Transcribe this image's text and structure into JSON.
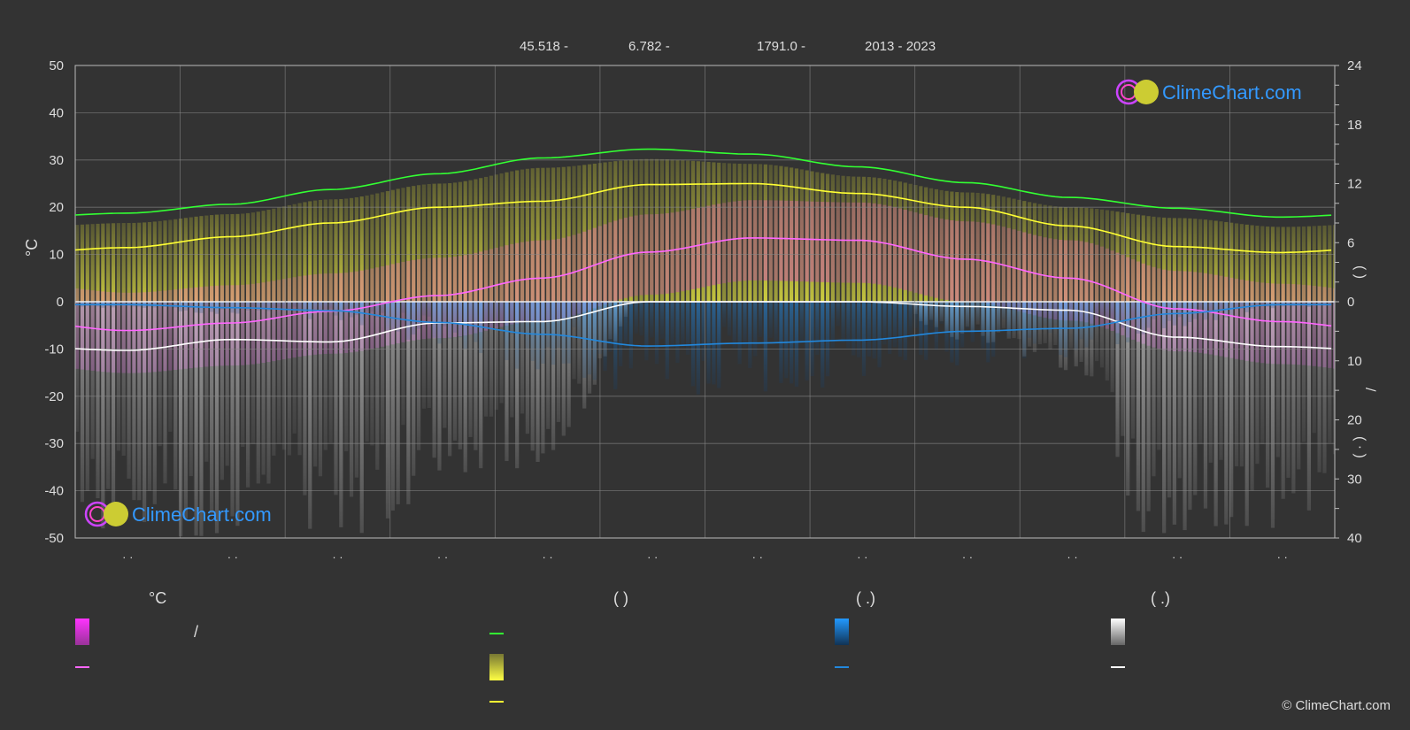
{
  "header": {
    "lat": "45.518 -",
    "lon": "6.782 -",
    "elev": "1791.0 -",
    "years": "2013 - 2023"
  },
  "axes": {
    "left_unit": "°C",
    "right_top_paren": "(          )",
    "right_slash": "/",
    "right_bottom_paren": "( ·  )",
    "month_labels": [
      "· ·",
      "· ·",
      "· ·",
      "· ·",
      "· ·",
      "· ·",
      "· ·",
      "· ·",
      "· ·",
      "· ·",
      "· ·",
      "· ·"
    ]
  },
  "legend": {
    "col1_head": "°C",
    "col1_item1": "/",
    "col2_head": "(          )",
    "col3_head": "(   .)",
    "col4_head": "(   .)"
  },
  "logo": {
    "text": "ClimeChart.com"
  },
  "copyright": "© ClimeChart.com",
  "colors": {
    "background": "#333333",
    "daylight": "#33ff33",
    "sunshine": "#ffff33",
    "temp_mean": "#ff66ff",
    "precip": "#2288dd",
    "snow": "#ffffff",
    "logo_blue": "#3399ff"
  },
  "chart_data": {
    "type": "line",
    "x": [
      15,
      45,
      74,
      105,
      135,
      166,
      196,
      227,
      258,
      288,
      319,
      349
    ],
    "left_axis": {
      "label": "°C",
      "ylim": [
        -50,
        50
      ],
      "ticks": [
        50,
        40,
        30,
        20,
        10,
        0,
        -10,
        -20,
        -30,
        -40,
        -50
      ]
    },
    "right_axis_top": {
      "ylim": [
        0,
        24
      ],
      "ticks": [
        24,
        18,
        12,
        6,
        0
      ]
    },
    "right_axis_bottom": {
      "ylim": [
        0,
        40
      ],
      "ticks": [
        0,
        10,
        20,
        30,
        40
      ]
    },
    "series": [
      {
        "values": [
          9.0,
          9.9,
          11.4,
          13.0,
          14.6,
          15.5,
          15.0,
          13.7,
          12.1,
          10.6,
          9.5,
          8.6
        ]
      },
      {
        "values": [
          5.5,
          6.6,
          8.0,
          9.6,
          10.2,
          11.9,
          12.0,
          11.0,
          9.6,
          7.7,
          5.6,
          5.0
        ]
      },
      {
        "values": [
          -6.1,
          -4.5,
          -2.0,
          1.3,
          5.0,
          10.5,
          13.5,
          13.0,
          9.0,
          5.0,
          -1.5,
          -4.2
        ]
      },
      {
        "values": [
          -10.3,
          -8.0,
          -8.5,
          -4.5,
          -4.2,
          0.0,
          0.0,
          0.0,
          -1.0,
          -1.8,
          -7.5,
          -9.5
        ]
      },
      {
        "values": [
          0.5,
          1.0,
          1.5,
          3.5,
          5.5,
          7.5,
          7.0,
          6.5,
          5.0,
          4.5,
          2.0,
          0.5
        ]
      }
    ]
  }
}
